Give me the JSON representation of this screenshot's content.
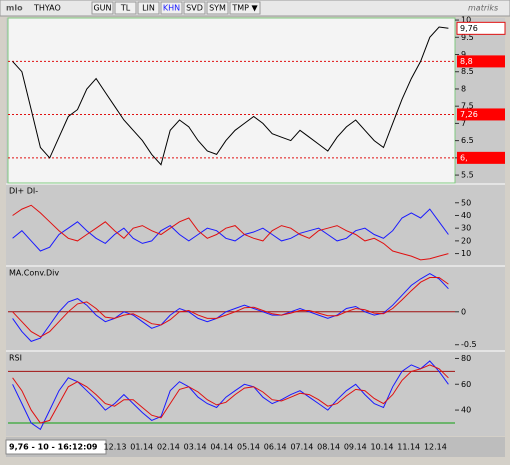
{
  "toolbar": {
    "logo": "mlo",
    "symbol": "THYAO",
    "buttons": [
      "GUN",
      "TL",
      "LIN",
      "KHN",
      "SVD",
      "SYM",
      "TMP ▼"
    ],
    "brand": "matriks"
  },
  "status": "9,76 - 10 - 16:12:09",
  "time_axis": [
    "12.13",
    "01.14",
    "02.14",
    "03.14",
    "04.14",
    "05.14",
    "06.14",
    "07.14",
    "08.14",
    "09.14",
    "10.14",
    "11.14",
    "12.14"
  ],
  "chart_data": [
    {
      "type": "line",
      "color": "#000000",
      "values": [
        8.8,
        8.5,
        7.4,
        6.3,
        6.0,
        6.6,
        7.2,
        7.4,
        8.0,
        8.3,
        7.9,
        7.5,
        7.1,
        6.8,
        6.5,
        6.1,
        5.8,
        6.8,
        7.1,
        6.9,
        6.5,
        6.2,
        6.1,
        6.5,
        6.8,
        7.0,
        7.2,
        7.0,
        6.7,
        6.6,
        6.5,
        6.8,
        6.6,
        6.4,
        6.2,
        6.6,
        6.9,
        7.1,
        6.8,
        6.5,
        6.3,
        7.0,
        7.7,
        8.3,
        8.8,
        9.5,
        9.8,
        9.76
      ],
      "ylim": [
        5.27,
        10.06
      ],
      "yticks": [
        5.5,
        6,
        6.5,
        7,
        7.5,
        8,
        8.5,
        9,
        9.5,
        10
      ],
      "levels": [
        {
          "value": 8.8,
          "label": "8,8"
        },
        {
          "value": 7.26,
          "label": "7,26"
        },
        {
          "value": 6,
          "label": "6,"
        }
      ],
      "last": {
        "value": 9.76,
        "label": "9,76"
      }
    },
    {
      "type": "line",
      "title": "DI+ DI-",
      "series": [
        {
          "color": "#1a1aff",
          "values": [
            22,
            28,
            20,
            12,
            15,
            25,
            30,
            35,
            28,
            22,
            18,
            25,
            30,
            22,
            18,
            20,
            28,
            32,
            25,
            20,
            25,
            30,
            28,
            22,
            20,
            25,
            27,
            30,
            25,
            20,
            22,
            26,
            28,
            30,
            25,
            20,
            22,
            28,
            30,
            25,
            22,
            28,
            38,
            42,
            38,
            45,
            35,
            25
          ]
        },
        {
          "color": "#e01010",
          "values": [
            40,
            45,
            48,
            42,
            35,
            28,
            22,
            20,
            25,
            30,
            35,
            28,
            22,
            30,
            32,
            28,
            25,
            30,
            35,
            38,
            28,
            22,
            25,
            30,
            32,
            25,
            22,
            20,
            28,
            32,
            30,
            25,
            22,
            28,
            30,
            32,
            28,
            25,
            20,
            22,
            18,
            12,
            10,
            8,
            5,
            6,
            8,
            10
          ]
        }
      ],
      "ylim": [
        1,
        64
      ],
      "yticks": [
        10,
        20,
        30,
        40,
        50
      ]
    },
    {
      "type": "line",
      "title": "MA.Conv.Div",
      "series": [
        {
          "color": "#1a1aff",
          "values": [
            -0.1,
            -0.3,
            -0.45,
            -0.4,
            -0.2,
            0.0,
            0.15,
            0.2,
            0.1,
            -0.05,
            -0.15,
            -0.1,
            0.0,
            -0.05,
            -0.15,
            -0.25,
            -0.2,
            -0.05,
            0.05,
            0.0,
            -0.1,
            -0.15,
            -0.1,
            0.0,
            0.05,
            0.1,
            0.05,
            0.0,
            -0.05,
            -0.05,
            0.0,
            0.05,
            0.0,
            -0.05,
            -0.1,
            -0.05,
            0.05,
            0.08,
            0.0,
            -0.05,
            -0.02,
            0.1,
            0.25,
            0.4,
            0.5,
            0.58,
            0.5,
            0.35
          ]
        },
        {
          "color": "#e01010",
          "values": [
            0.0,
            -0.15,
            -0.3,
            -0.38,
            -0.3,
            -0.15,
            0.0,
            0.12,
            0.15,
            0.05,
            -0.08,
            -0.1,
            -0.05,
            -0.03,
            -0.1,
            -0.18,
            -0.2,
            -0.12,
            0.0,
            0.02,
            -0.05,
            -0.1,
            -0.1,
            -0.05,
            0.0,
            0.06,
            0.07,
            0.02,
            -0.03,
            -0.05,
            -0.02,
            0.02,
            0.02,
            -0.02,
            -0.06,
            -0.06,
            0.0,
            0.05,
            0.03,
            -0.02,
            -0.03,
            0.05,
            0.18,
            0.32,
            0.45,
            0.52,
            0.52,
            0.42
          ]
        }
      ],
      "ylim": [
        -0.58,
        0.68
      ],
      "yticks": [
        -0.5,
        0
      ],
      "zero_line": 0
    },
    {
      "type": "line",
      "title": "RSI",
      "series": [
        {
          "color": "#1a1aff",
          "values": [
            60,
            45,
            30,
            25,
            40,
            55,
            65,
            62,
            55,
            48,
            40,
            45,
            52,
            45,
            38,
            32,
            35,
            55,
            62,
            58,
            50,
            45,
            42,
            50,
            55,
            60,
            58,
            50,
            45,
            48,
            52,
            55,
            50,
            45,
            40,
            48,
            55,
            60,
            52,
            45,
            42,
            58,
            70,
            75,
            72,
            78,
            70,
            60
          ]
        },
        {
          "color": "#e01010",
          "values": [
            65,
            55,
            40,
            30,
            32,
            45,
            58,
            62,
            58,
            52,
            45,
            43,
            48,
            48,
            42,
            36,
            34,
            45,
            56,
            58,
            54,
            48,
            44,
            46,
            52,
            57,
            58,
            54,
            48,
            47,
            50,
            53,
            52,
            48,
            43,
            45,
            51,
            56,
            55,
            49,
            45,
            52,
            63,
            70,
            72,
            75,
            72,
            65
          ]
        }
      ],
      "ylim": [
        23,
        85
      ],
      "yticks": [
        40,
        60,
        80
      ],
      "bands": [
        {
          "value": 70,
          "color": "#a01010"
        },
        {
          "value": 30,
          "color": "#10a010"
        }
      ]
    }
  ]
}
